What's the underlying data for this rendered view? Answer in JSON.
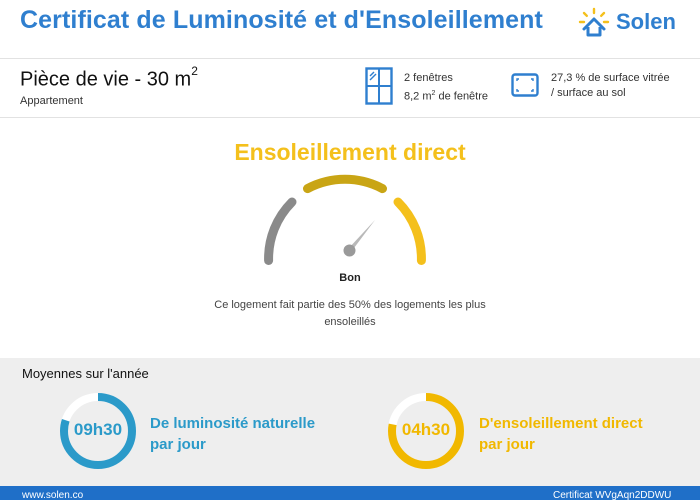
{
  "header": {
    "title": "Certificat de Luminosité et d'Ensoleillement",
    "logo_text": "Solen"
  },
  "room": {
    "title": "Pièce de vie - 30 m",
    "title_sup": "2",
    "subtitle": "Appartement",
    "windows_line1": "2 fenêtres",
    "windows_line2_a": "8,2 m",
    "windows_line2_sup": "2",
    "windows_line2_b": " de fenêtre",
    "surface_line1": "27,3 % de surface vitrée",
    "surface_line2": "/ surface au sol"
  },
  "sunshine": {
    "title": "Ensoleillement direct",
    "rating": "Bon",
    "description": "Ce logement fait partie des 50% des logements les plus ensoleillés",
    "segment_colors": [
      "#8a8a8a",
      "#c9a515",
      "#f4c01c"
    ]
  },
  "averages": {
    "title": "Moyennes sur l'année",
    "items": [
      {
        "time": "09h30",
        "label_line1": "De luminosité naturelle",
        "label_line2": "par jour",
        "color": "#2b9ac9",
        "fill_fraction": 0.8
      },
      {
        "time": "04h30",
        "label_line1": "D'ensoleillement direct",
        "label_line2": "par jour",
        "color": "#f1b800",
        "fill_fraction": 0.78
      }
    ]
  },
  "footer": {
    "left": "www.solen.co",
    "right": "Certificat WVgAqn2DDWU"
  }
}
